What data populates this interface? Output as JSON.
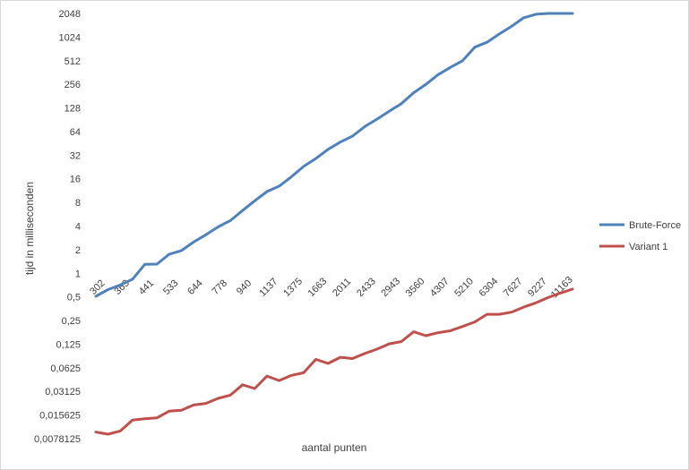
{
  "chart_data": {
    "type": "line",
    "xlabel": "aantal punten",
    "ylabel": "tijd in milliseconden",
    "y_scale": "log2",
    "ylim": [
      0.0078125,
      2048
    ],
    "yticks": [
      "2048",
      "1024",
      "512",
      "256",
      "128",
      "64",
      "32",
      "16",
      "8",
      "4",
      "2",
      "1",
      "0,5",
      "0,25",
      "0,125",
      "0,0625",
      "0,03125",
      "0,015625",
      "0,0078125"
    ],
    "xtick_labels": [
      "302",
      "363",
      "441",
      "533",
      "644",
      "778",
      "940",
      "1137",
      "1375",
      "1663",
      "2011",
      "2433",
      "2943",
      "3560",
      "4307",
      "5210",
      "6304",
      "7627",
      "9227",
      "11163"
    ],
    "x_points": 40,
    "grid": false,
    "legend_position": "right",
    "series": [
      {
        "name": "Brute-Force",
        "color": "#4f81bd",
        "values": [
          0.51,
          0.62,
          0.71,
          0.84,
          1.3,
          1.31,
          1.75,
          1.95,
          2.5,
          3.1,
          3.9,
          4.7,
          6.3,
          8.4,
          11,
          12.9,
          17,
          23,
          29,
          38,
          47,
          56,
          74,
          92,
          116,
          145,
          200,
          255,
          340,
          420,
          510,
          760,
          880,
          1120,
          1400,
          1800,
          2000,
          2048,
          2048,
          2048
        ]
      },
      {
        "name": "Variant 1",
        "color": "#c0504d",
        "values": [
          0.0095,
          0.0089,
          0.0098,
          0.0135,
          0.014,
          0.0144,
          0.0175,
          0.018,
          0.021,
          0.022,
          0.0255,
          0.028,
          0.038,
          0.034,
          0.049,
          0.043,
          0.05,
          0.054,
          0.08,
          0.071,
          0.085,
          0.082,
          0.095,
          0.108,
          0.126,
          0.135,
          0.18,
          0.16,
          0.175,
          0.185,
          0.21,
          0.24,
          0.3,
          0.3,
          0.32,
          0.37,
          0.42,
          0.49,
          0.56,
          0.63
        ]
      }
    ]
  }
}
